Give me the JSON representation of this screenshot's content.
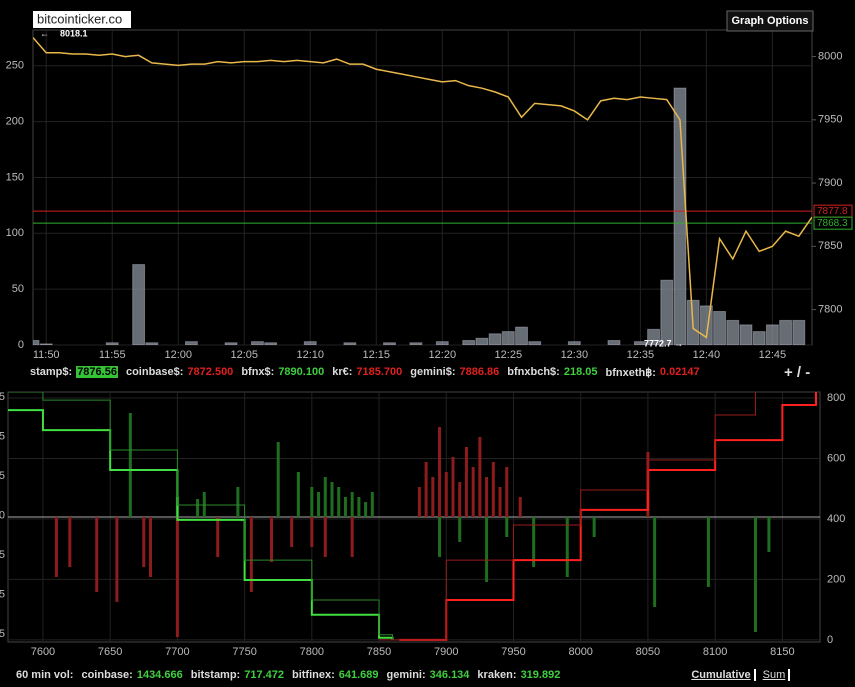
{
  "header": {
    "logo": "bitcointicker.co",
    "options_button": "Graph Options"
  },
  "price_chart": {
    "type": "line",
    "xlim": [
      "11:49",
      "12:48"
    ],
    "xticks": [
      "11:50",
      "11:55",
      "12:00",
      "12:05",
      "12:10",
      "12:15",
      "12:20",
      "12:25",
      "12:30",
      "12:35",
      "12:40",
      "12:45"
    ],
    "price": {
      "color": "#e8b84a",
      "x": [
        "11:49",
        "11:50",
        "11:51",
        "11:52",
        "11:53",
        "11:54",
        "11:55",
        "11:56",
        "11:57",
        "11:58",
        "11:59",
        "12:00",
        "12:01",
        "12:02",
        "12:03",
        "12:04",
        "12:05",
        "12:06",
        "12:07",
        "12:08",
        "12:09",
        "12:10",
        "12:11",
        "12:12",
        "12:13",
        "12:14",
        "12:15",
        "12:16",
        "12:17",
        "12:18",
        "12:19",
        "12:20",
        "12:21",
        "12:22",
        "12:23",
        "12:24",
        "12:25",
        "12:26",
        "12:27",
        "12:28",
        "12:29",
        "12:30",
        "12:31",
        "12:32",
        "12:33",
        "12:34",
        "12:35",
        "12:36",
        "12:37",
        "12:38",
        "12:39",
        "12:40",
        "12:41",
        "12:42",
        "12:43",
        "12:44",
        "12:45",
        "12:46",
        "12:47",
        "12:48"
      ],
      "values": [
        8015,
        8003,
        8003,
        8002,
        8002,
        8001,
        8002,
        8000,
        8001,
        7995,
        7994,
        7993,
        7994,
        7994,
        7996,
        7995,
        7996,
        7996,
        7997,
        7996,
        7997,
        7996,
        7995,
        7998,
        7994,
        7994,
        7990,
        7988,
        7986,
        7984,
        7982,
        7980,
        7981,
        7977,
        7975,
        7972,
        7968,
        7952,
        7963,
        7962,
        7961,
        7957,
        7950,
        7965,
        7967,
        7966,
        7968,
        7967,
        7966,
        7950,
        7785,
        7778,
        7856,
        7840,
        7862,
        7846,
        7850,
        7862,
        7858,
        7873
      ]
    },
    "price_ylim": [
      7772,
      8021
    ],
    "price_yticks": [
      7800,
      7850,
      7900,
      7950,
      8000
    ],
    "volume": {
      "color": "#8a929c",
      "x": [
        "11:49",
        "11:50",
        "11:55",
        "11:57",
        "11:58",
        "12:01",
        "12:04",
        "12:06",
        "12:07",
        "12:10",
        "12:13",
        "12:16",
        "12:18",
        "12:20",
        "12:22",
        "12:23",
        "12:24",
        "12:25",
        "12:26",
        "12:27",
        "12:30",
        "12:33",
        "12:35",
        "12:36",
        "12:37",
        "12:38",
        "12:39",
        "12:40",
        "12:41",
        "12:42",
        "12:43",
        "12:44",
        "12:45",
        "12:46",
        "12:47"
      ],
      "values": [
        4,
        1,
        2,
        72,
        2,
        3,
        2,
        3,
        2,
        3,
        2,
        2,
        2,
        3,
        4,
        6,
        10,
        12,
        16,
        3,
        3,
        4,
        3,
        14,
        58,
        230,
        40,
        35,
        30,
        22,
        18,
        12,
        18,
        22,
        22
      ]
    },
    "volume_ylim": [
      0,
      282
    ],
    "volume_yticks": [
      0,
      50,
      100,
      150,
      200,
      250
    ],
    "levels": [
      {
        "value": 7877.8,
        "label": "7877.8",
        "color": "#d42020"
      },
      {
        "value": 7868.3,
        "label": "7868.3",
        "color": "#2fb02f"
      }
    ],
    "annotations": {
      "high": "8018.1",
      "low": "7772.7"
    }
  },
  "ticker": {
    "items": [
      {
        "label": "stamp$:",
        "value": "7876.56",
        "color": "#000000",
        "background": "#36c236"
      },
      {
        "label": "coinbase$:",
        "value": "7872.500",
        "color": "#e02020"
      },
      {
        "label": "bfnx$:",
        "value": "7890.100",
        "color": "#3fcf3f"
      },
      {
        "label": "kr€:",
        "value": "7185.700",
        "color": "#e02020"
      },
      {
        "label": "gemini$:",
        "value": "7886.86",
        "color": "#e02020"
      },
      {
        "label": "bfnxbch$:",
        "value": "218.05",
        "color": "#3fcf3f"
      },
      {
        "label": "bfnxeth฿:",
        "value": "0.02147",
        "color": "#e02020"
      }
    ],
    "zoom": "+ / -"
  },
  "depth_chart": {
    "type": "depth",
    "xlim": [
      7574,
      8178
    ],
    "xticks": [
      7600,
      7650,
      7700,
      7750,
      7800,
      7850,
      7900,
      7950,
      8000,
      8050,
      8100,
      8150
    ],
    "ylim": [
      -125,
      125
    ],
    "left_tick_labels": [
      "5",
      "5",
      "5",
      "0",
      "5",
      "5",
      "5"
    ],
    "y2lim": [
      -7,
      820
    ],
    "y2ticks": [
      0,
      200,
      400,
      600,
      800
    ],
    "bars": [
      {
        "color": "#1f6e1f",
        "x": [
          7665,
          7700,
          7715,
          7720,
          7745,
          7775,
          7790,
          7800,
          7805,
          7810,
          7815,
          7820,
          7825,
          7830,
          7835,
          7840,
          7845,
          7895,
          7910,
          7930,
          7945,
          7965,
          7990,
          8010,
          8055,
          8095,
          8130,
          8140
        ],
        "values": [
          104,
          20,
          18,
          25,
          30,
          75,
          45,
          30,
          25,
          40,
          35,
          30,
          20,
          25,
          20,
          15,
          25,
          -40,
          -25,
          -65,
          -20,
          -50,
          -60,
          -20,
          -90,
          -70,
          -115,
          -35
        ]
      },
      {
        "color": "#8e1c1c",
        "x": [
          7880,
          7885,
          7890,
          7895,
          7900,
          7905,
          7910,
          7915,
          7920,
          7925,
          7930,
          7935,
          7940,
          7945,
          7955,
          8050,
          7610,
          7620,
          7640,
          7655,
          7675,
          7680,
          7700,
          7730,
          7755,
          7770,
          7785,
          7800,
          7810,
          7830
        ],
        "values": [
          30,
          55,
          40,
          90,
          45,
          60,
          35,
          70,
          50,
          80,
          40,
          55,
          30,
          50,
          20,
          65,
          -60,
          -50,
          -75,
          -85,
          -50,
          -60,
          -120,
          -40,
          -75,
          -45,
          -30,
          -30,
          -40,
          -40
        ]
      }
    ],
    "cumulative": [
      {
        "color": "#3fe03f",
        "x": [
          7574,
          7600,
          7650,
          7700,
          7750,
          7800,
          7850,
          7860
        ],
        "values": [
          760,
          694,
          562,
          397,
          198,
          83,
          7,
          0
        ]
      },
      {
        "color": "#2a8a2a",
        "x": [
          7574,
          7600,
          7650,
          7700,
          7750,
          7800,
          7850,
          7860
        ],
        "values": [
          820,
          793,
          628,
          446,
          264,
          132,
          17,
          0
        ]
      },
      {
        "color": "#ff2020",
        "x": [
          7865,
          7900,
          7950,
          8000,
          8050,
          8100,
          8150,
          8175
        ],
        "values": [
          0,
          132,
          264,
          430,
          562,
          661,
          777,
          820
        ]
      },
      {
        "color": "#9a1c1c",
        "x": [
          7850,
          7900,
          7950,
          8000,
          8050,
          8100,
          8130
        ],
        "values": [
          0,
          264,
          380,
          496,
          595,
          744,
          826
        ]
      }
    ]
  },
  "footer": {
    "title": "60 min vol:",
    "items": [
      {
        "label": "coinbase:",
        "value": "1434.666"
      },
      {
        "label": "bitstamp:",
        "value": "717.472"
      },
      {
        "label": "bitfinex:",
        "value": "641.689"
      },
      {
        "label": "gemini:",
        "value": "346.134"
      },
      {
        "label": "kraken:",
        "value": "319.892"
      }
    ],
    "modes": [
      "Cumulative",
      "Sum"
    ]
  }
}
